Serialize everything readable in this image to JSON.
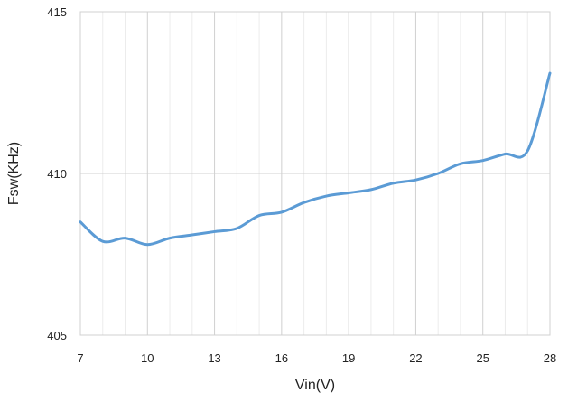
{
  "chart_data": {
    "type": "line",
    "title": "",
    "xlabel": "Vin(V)",
    "ylabel": "Fsw(KHz)",
    "xlim": [
      7,
      28
    ],
    "ylim": [
      405,
      415
    ],
    "x_ticks": [
      "7",
      "10",
      "13",
      "16",
      "19",
      "22",
      "25",
      "28"
    ],
    "y_ticks": [
      "405",
      "410",
      "415"
    ],
    "grid": true,
    "legend": "none",
    "series": [
      {
        "color": "#5B9BD5",
        "x": [
          7,
          8,
          9,
          10,
          11,
          12,
          13,
          14,
          15,
          16,
          17,
          18,
          19,
          20,
          21,
          22,
          23,
          24,
          25,
          26,
          27,
          28
        ],
        "y": [
          408.5,
          407.9,
          408.0,
          407.8,
          408.0,
          408.1,
          408.2,
          408.3,
          408.7,
          408.8,
          409.1,
          409.3,
          409.4,
          409.5,
          409.7,
          409.8,
          410.0,
          410.3,
          410.4,
          410.6,
          410.7,
          413.1
        ]
      }
    ]
  }
}
